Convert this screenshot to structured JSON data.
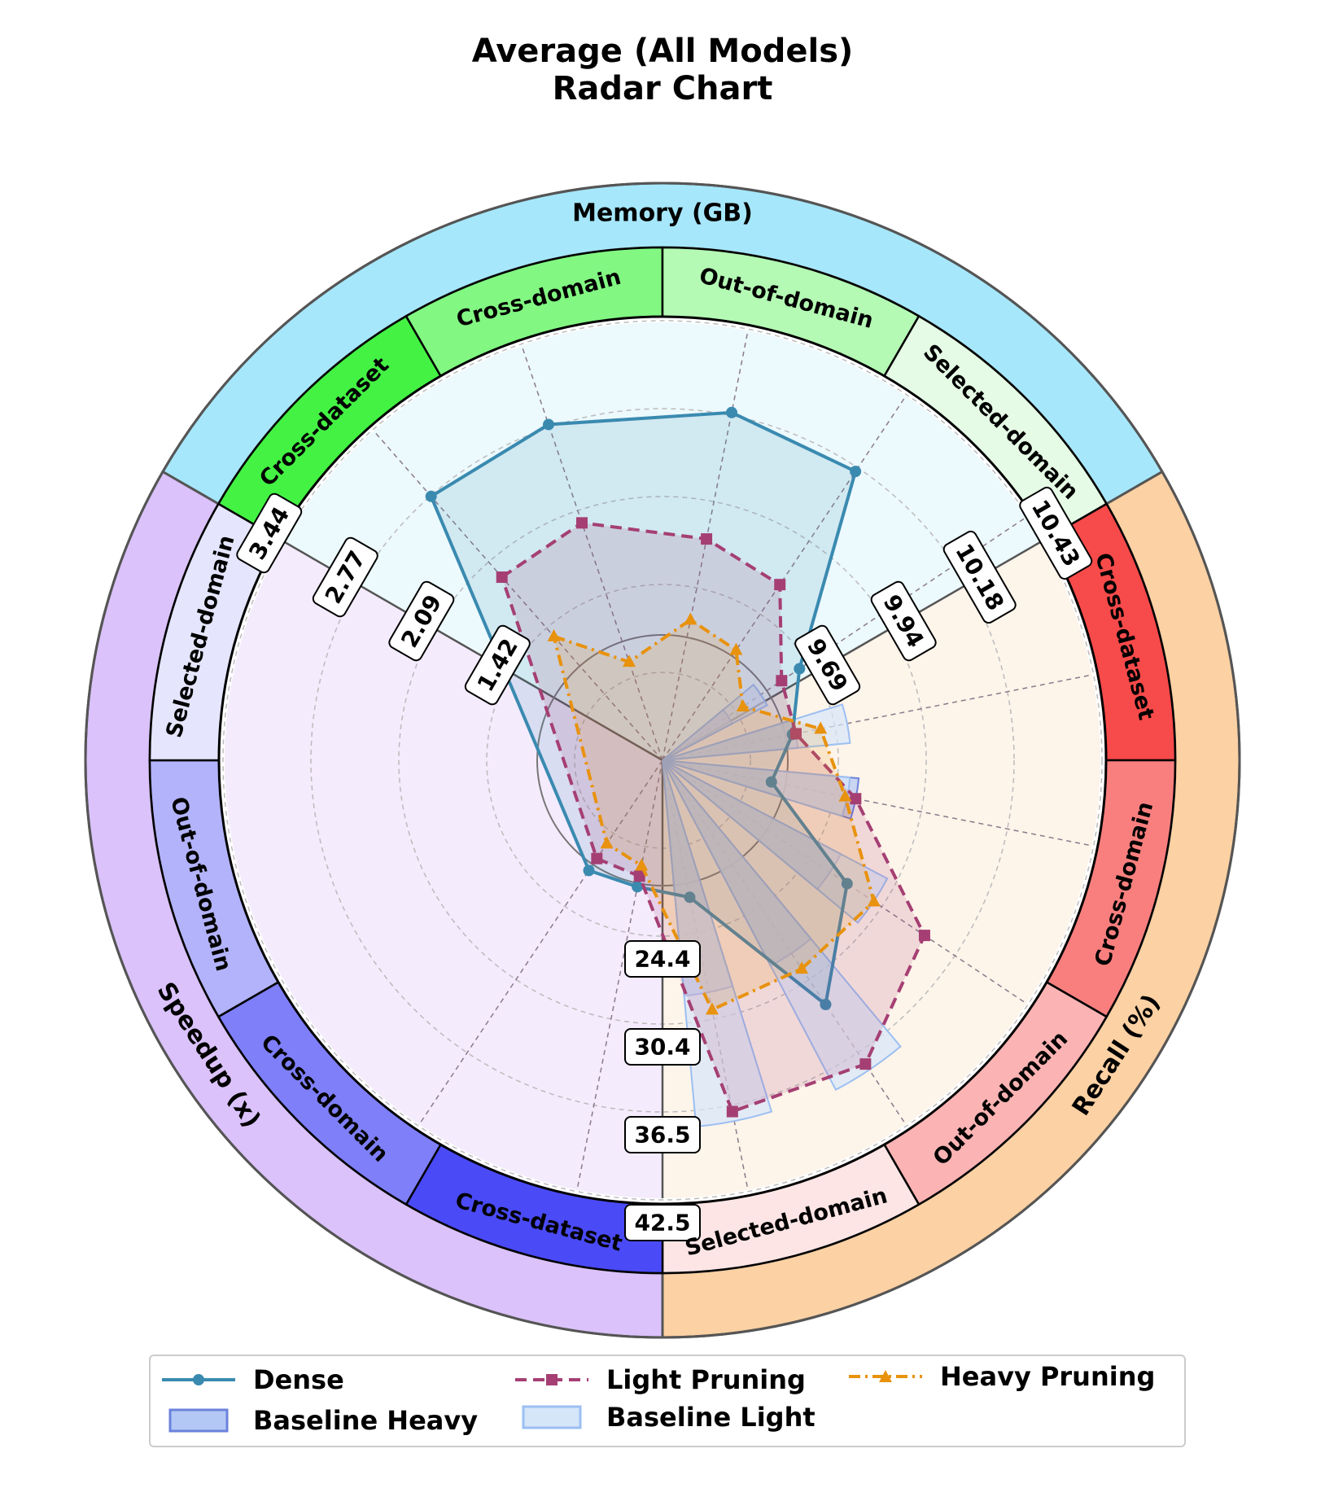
{
  "chart_data": {
    "type": "radar",
    "title": "Average (All Models)",
    "subtitle": "Radar Chart",
    "groups": [
      {
        "name": "Memory (GB)",
        "color": "#a6e7fb",
        "axes": [
          "Cross-dataset",
          "Cross-domain",
          "Out-of-domain",
          "Selected-domain"
        ],
        "axis_colors": [
          "#44f244",
          "#82f882",
          "#b4f9b4",
          "#e5fbe5"
        ]
      },
      {
        "name": "Recall (%)",
        "color": "#fcd1a3",
        "axes": [
          "Cross-dataset",
          "Cross-domain",
          "Out-of-domain",
          "Selected-domain"
        ],
        "axis_colors": [
          "#f74a4a",
          "#f97f7f",
          "#fbb3b3",
          "#fde5e5"
        ]
      },
      {
        "name": "Speedup (x)",
        "color": "#dbc2fb",
        "axes": [
          "Cross-dataset",
          "Cross-domain",
          "Out-of-domain",
          "Selected-domain"
        ],
        "axis_colors": [
          "#4a4af7",
          "#7f7ff9",
          "#b3b3fb",
          "#e5e5fd"
        ]
      }
    ],
    "axis_angles_deg": [
      318.75,
      341.25,
      11.25,
      33.75,
      56.25,
      78.75,
      101.25,
      123.75,
      146.25,
      168.75,
      191.25,
      213.75
    ],
    "series": [
      {
        "name": "Dense",
        "color": "#3a8ab0",
        "marker": "circle",
        "dash": "solid",
        "r": [
          0.98,
          0.99,
          0.99,
          0.97,
          0.46,
          0.37,
          0.31,
          0.62,
          0.82,
          0.39,
          0.36,
          0.37
        ]
      },
      {
        "name": "Light Pruning",
        "color": "#a53f73",
        "marker": "square",
        "dash": "dashed",
        "r": [
          0.68,
          0.7,
          0.63,
          0.59,
          0.4,
          0.38,
          0.55,
          0.88,
          1.02,
          1.0,
          0.33,
          0.33
        ]
      },
      {
        "name": "Heavy Pruning",
        "color": "#e8920e",
        "marker": "triangle",
        "dash": "dashdot",
        "r": [
          0.46,
          0.29,
          0.4,
          0.37,
          0.27,
          0.45,
          0.52,
          0.71,
          0.7,
          0.71,
          0.3,
          0.28
        ]
      },
      {
        "name": "Baseline Heavy",
        "type": "bars",
        "color": "#6b82dc",
        "fill": "#b3c8f4",
        "r": [
          0,
          0,
          0,
          0,
          0.18,
          0.31,
          0.45,
          0.46,
          0.53,
          0.54,
          0,
          0
        ]
      },
      {
        "name": "Baseline Light",
        "type": "bars",
        "color": "#9cbff2",
        "fill": "#d5e6f9",
        "r": [
          0,
          0,
          0,
          0,
          0.27,
          0.43,
          0.43,
          0.58,
          0.85,
          0.84,
          0,
          0
        ]
      }
    ],
    "radial_tick_labels": {
      "memory": [
        "9.69",
        "9.94",
        "10.18",
        "10.43"
      ],
      "recall": [
        "24.4",
        "30.4",
        "36.5",
        "42.5"
      ],
      "speedup": [
        "1.42",
        "2.09",
        "2.77",
        "3.44"
      ]
    },
    "grid": true,
    "legend_position": "bottom"
  },
  "legend": [
    {
      "label": "Dense"
    },
    {
      "label": "Light Pruning"
    },
    {
      "label": "Heavy Pruning"
    },
    {
      "label": "Baseline Heavy"
    },
    {
      "label": "Baseline Light"
    }
  ]
}
